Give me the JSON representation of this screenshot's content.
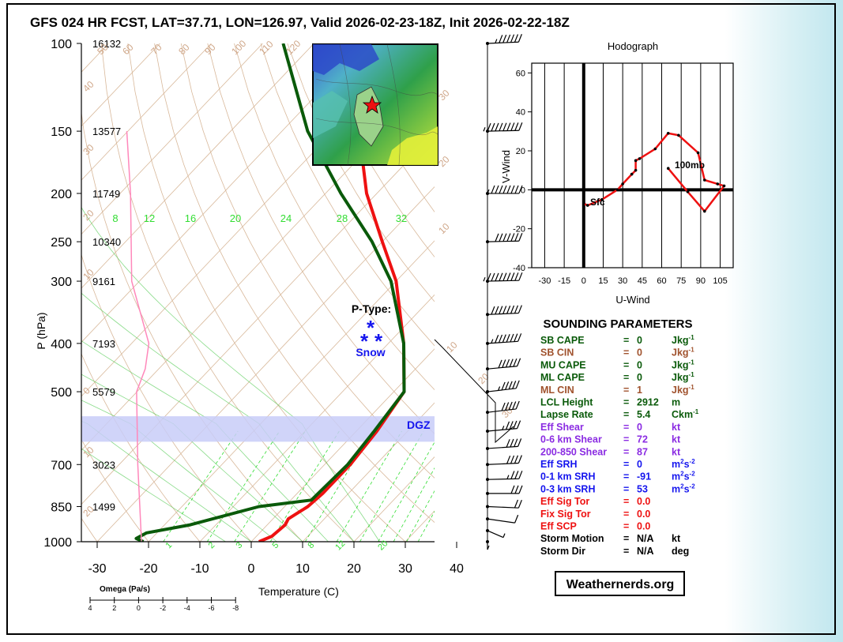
{
  "title": "GFS 024 HR FCST, LAT=37.71, LON=126.97, Valid 2026-02-23-18Z, Init 2026-02-22-18Z",
  "colors": {
    "temperature": "#ee1111",
    "dewpoint": "#0a5a0a",
    "omega": "#ff88bb",
    "dgz": "#c8cdf8",
    "isotherm": "#d8b89a",
    "mixing_ratio": "#33dd33",
    "dry_adiabat": "#d8b89a",
    "wind_barb": "#000000"
  },
  "skewt": {
    "pressure_levels": [
      100,
      150,
      200,
      250,
      300,
      400,
      500,
      700,
      850,
      1000
    ],
    "heights": [
      "16132",
      "13577",
      "11749",
      "10340",
      "9161",
      "7193",
      "5579",
      "3023",
      "1499"
    ],
    "temp_ticks": [
      "-30",
      "-20",
      "-10",
      "0",
      "10",
      "20",
      "30",
      "40"
    ],
    "xlabel": "Temperature (C)",
    "ylabel": "P (hPa)",
    "mixing_ratio_labels": [
      "8",
      "12",
      "16",
      "20",
      "24",
      "28",
      "32"
    ],
    "mixing_ratio_low_labels": [
      "1",
      "2",
      "3",
      "5",
      "8",
      "12",
      "20"
    ],
    "isotherm_labels": [
      "60",
      "70",
      "80",
      "90",
      "100",
      "110",
      "120",
      "50",
      "40",
      "30",
      "20",
      "10",
      "0",
      "10",
      "20",
      "30",
      "30",
      "20",
      "10",
      "10",
      "20",
      "30"
    ],
    "dgz_label": "DGZ",
    "ptype_title": "P-Type:",
    "ptype_value": "Snow",
    "ptype_symbol": "*",
    "omega_title": "Omega (Pa/s)",
    "omega_ticks": [
      "4",
      "2",
      "0",
      "-2",
      "-4",
      "-6",
      "-8"
    ]
  },
  "chart_data": [
    {
      "type": "line",
      "title": "",
      "xlabel": "Temperature (C)",
      "ylabel": "P (hPa)",
      "yscale": "log",
      "xlim": [
        -35,
        45
      ],
      "ylim": [
        1000,
        100
      ],
      "series": [
        {
          "name": "",
          "kind": "temperature",
          "points": [
            [
              1000,
              1.5
            ],
            [
              975,
              3
            ],
            [
              925,
              3.5
            ],
            [
              900,
              3
            ],
            [
              850,
              4.5
            ],
            [
              800,
              5
            ],
            [
              700,
              5
            ],
            [
              600,
              4
            ],
            [
              500,
              2
            ],
            [
              400,
              -7
            ],
            [
              300,
              -20
            ],
            [
              250,
              -30
            ],
            [
              200,
              -42
            ],
            [
              150,
              -55
            ],
            [
              100,
              -68
            ]
          ]
        },
        {
          "name": "",
          "kind": "dewpoint",
          "points": [
            [
              1000,
              -21
            ],
            [
              985,
              -23
            ],
            [
              960,
              -22
            ],
            [
              925,
              -15
            ],
            [
              850,
              -5
            ],
            [
              825,
              4
            ],
            [
              700,
              4.5
            ],
            [
              600,
              3.5
            ],
            [
              500,
              2
            ],
            [
              400,
              -7
            ],
            [
              300,
              -21
            ],
            [
              250,
              -32
            ],
            [
              200,
              -47
            ],
            [
              150,
              -65
            ],
            [
              100,
              -86
            ]
          ]
        },
        {
          "name": "",
          "kind": "omega",
          "points": [
            [
              1000,
              -0.2
            ],
            [
              700,
              0.1
            ],
            [
              500,
              0.2
            ],
            [
              450,
              -0.5
            ],
            [
              400,
              -0.8
            ],
            [
              300,
              0.6
            ],
            [
              200,
              0.7
            ],
            [
              150,
              1.0
            ]
          ]
        }
      ],
      "dgz": {
        "p_top": 560,
        "p_bottom": 630
      }
    },
    {
      "type": "line",
      "title": "Hodograph",
      "xlabel": "U-Wind",
      "ylabel": "V-Wind",
      "xlim": [
        -40,
        115
      ],
      "ylim": [
        -40,
        65
      ],
      "xticks": [
        "-30",
        "-15",
        "0",
        "15",
        "30",
        "45",
        "60",
        "75",
        "90",
        "105"
      ],
      "yticks": [
        "60",
        "40",
        "20",
        "0",
        "-20",
        "-40"
      ],
      "labels": [
        {
          "text": "Sfc",
          "x": 5,
          "y": -8
        },
        {
          "text": "100mb",
          "x": 70,
          "y": 11
        }
      ],
      "series": [
        {
          "name": "",
          "x": [
            0,
            3,
            14,
            26,
            30,
            37,
            40,
            40,
            43,
            55,
            65,
            73,
            88,
            93,
            103,
            108,
            93,
            80,
            65
          ],
          "y": [
            -7,
            -8,
            -5,
            0,
            3,
            8,
            10,
            15,
            16,
            21,
            29,
            28,
            19,
            5,
            3,
            2,
            -11,
            -1,
            11
          ]
        }
      ]
    }
  ],
  "sounding_parameters": {
    "title": "SOUNDING PARAMETERS",
    "rows": [
      {
        "name": "SB CAPE",
        "value": "0",
        "unit": "Jkg",
        "sup": "-1",
        "color": "#0a5a0a"
      },
      {
        "name": "SB CIN",
        "value": "0",
        "unit": "Jkg",
        "sup": "-1",
        "color": "#a0522d"
      },
      {
        "name": "MU CAPE",
        "value": "0",
        "unit": "Jkg",
        "sup": "-1",
        "color": "#0a5a0a"
      },
      {
        "name": "ML CAPE",
        "value": "0",
        "unit": "Jkg",
        "sup": "-1",
        "color": "#0a5a0a"
      },
      {
        "name": "ML CIN",
        "value": "1",
        "unit": "Jkg",
        "sup": "-1",
        "color": "#a0522d"
      },
      {
        "name": "LCL Height",
        "value": "2912",
        "unit": "m",
        "sup": "",
        "color": "#0a5a0a"
      },
      {
        "name": "Lapse Rate",
        "value": "5.4",
        "unit": "Ckm",
        "sup": "-1",
        "color": "#0a5a0a"
      },
      {
        "name": "Eff Shear",
        "value": "0",
        "unit": "kt",
        "sup": "",
        "color": "#8a2be2"
      },
      {
        "name": "0-6 km Shear",
        "value": "72",
        "unit": "kt",
        "sup": "",
        "color": "#8a2be2"
      },
      {
        "name": "200-850 Shear",
        "value": "87",
        "unit": "kt",
        "sup": "",
        "color": "#8a2be2"
      },
      {
        "name": "Eff SRH",
        "value": "0",
        "unit": "m",
        "sup": "2",
        "unit2": "s",
        "sup2": "-2",
        "color": "#1515ee"
      },
      {
        "name": "0-1 km SRH",
        "value": "-91",
        "unit": "m",
        "sup": "2",
        "unit2": "s",
        "sup2": "-2",
        "color": "#1515ee"
      },
      {
        "name": "0-3 km SRH",
        "value": "53",
        "unit": "m",
        "sup": "2",
        "unit2": "s",
        "sup2": "-2",
        "color": "#1515ee"
      },
      {
        "name": "Eff Sig Tor",
        "value": "0.0",
        "unit": "",
        "sup": "",
        "color": "#ee1111"
      },
      {
        "name": "Fix Sig Tor",
        "value": "0.0",
        "unit": "",
        "sup": "",
        "color": "#ee1111"
      },
      {
        "name": "Eff SCP",
        "value": "0.0",
        "unit": "",
        "sup": "",
        "color": "#ee1111"
      },
      {
        "name": "Storm Motion",
        "value": "N/A",
        "unit": "kt",
        "sup": "",
        "color": "#000000"
      },
      {
        "name": "Storm Dir",
        "value": "N/A",
        "unit": "deg",
        "sup": "",
        "color": "#000000"
      }
    ],
    "equals": "="
  },
  "winds": [
    {
      "p": 100,
      "speed": 65,
      "dir": 260
    },
    {
      "p": 150,
      "speed": 95,
      "dir": 265
    },
    {
      "p": 200,
      "speed": 85,
      "dir": 270
    },
    {
      "p": 250,
      "speed": 70,
      "dir": 265
    },
    {
      "p": 300,
      "speed": 95,
      "dir": 265
    },
    {
      "p": 350,
      "speed": 80,
      "dir": 260
    },
    {
      "p": 400,
      "speed": 75,
      "dir": 255
    },
    {
      "p": 450,
      "speed": 60,
      "dir": 250
    },
    {
      "p": 500,
      "speed": 55,
      "dir": 245
    },
    {
      "p": 550,
      "speed": 50,
      "dir": 245
    },
    {
      "p": 600,
      "speed": 45,
      "dir": 250
    },
    {
      "p": 650,
      "speed": 40,
      "dir": 255
    },
    {
      "p": 700,
      "speed": 40,
      "dir": 260
    },
    {
      "p": 750,
      "speed": 35,
      "dir": 265
    },
    {
      "p": 800,
      "speed": 30,
      "dir": 270
    },
    {
      "p": 850,
      "speed": 20,
      "dir": 280
    },
    {
      "p": 900,
      "speed": 10,
      "dir": 300
    },
    {
      "p": 950,
      "speed": 8,
      "dir": 330
    },
    {
      "p": 1000,
      "speed": 5,
      "dir": 0
    }
  ],
  "map": {
    "description": "regional map inset"
  },
  "footer": {
    "site": "Weathernerds.org"
  }
}
